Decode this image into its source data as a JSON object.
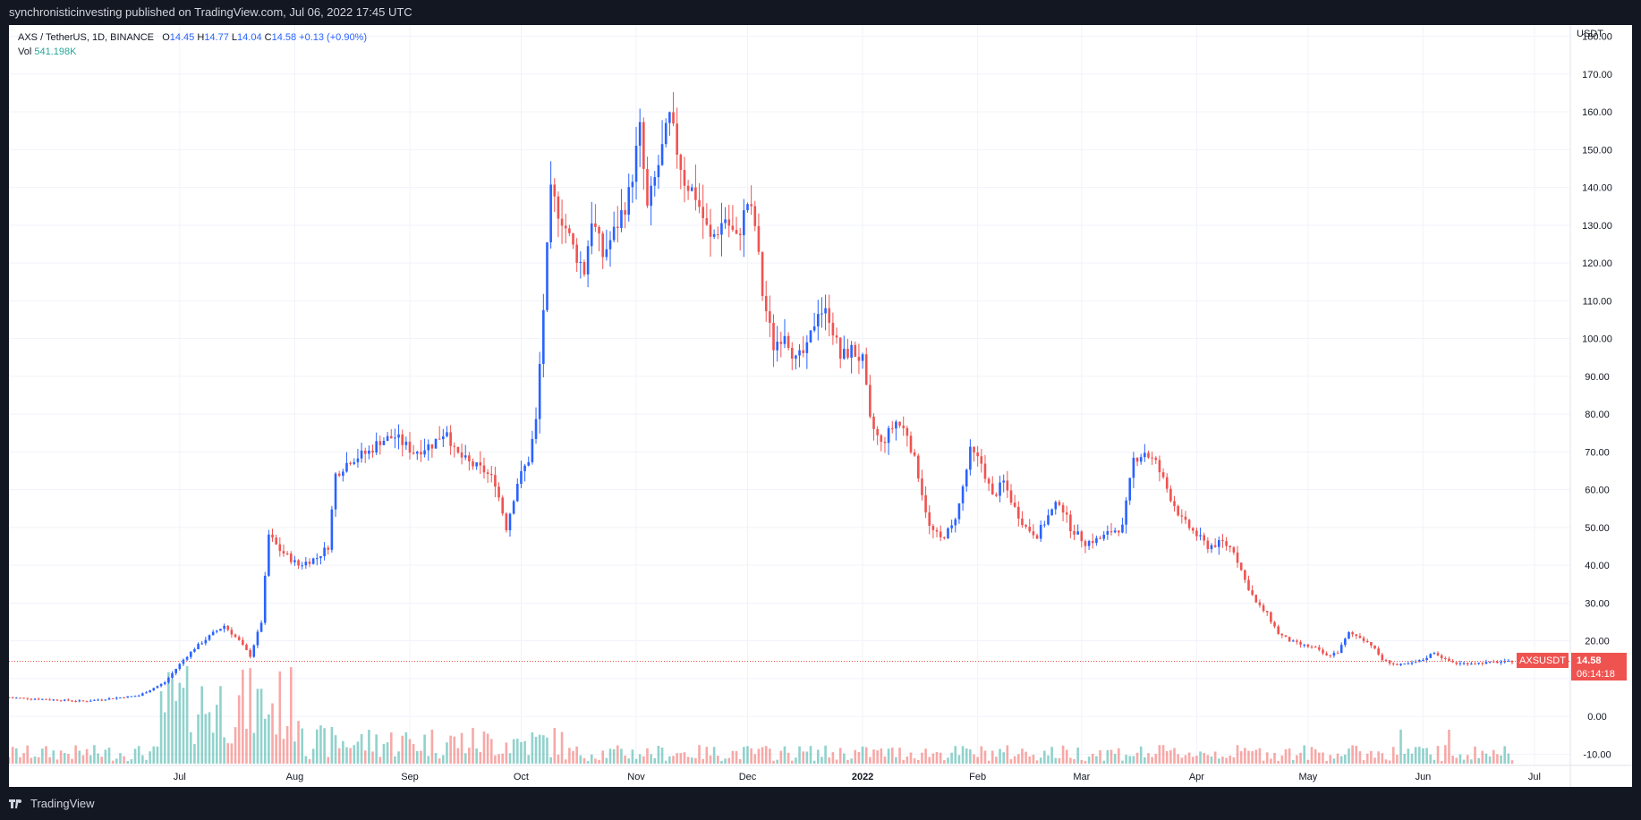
{
  "header": {
    "publisher": "synchronisticinvesting published on TradingView.com, Jul 06, 2022 17:45 UTC"
  },
  "footer": {
    "brand": "TradingView"
  },
  "legend": {
    "symbol": "AXS / TetherUS, 1D, BINANCE",
    "open_label": "O",
    "open": "14.45",
    "high_label": "H",
    "high": "14.77",
    "low_label": "L",
    "low": "14.04",
    "close_label": "C",
    "close": "14.58",
    "change": "+0.13 (+0.90%)",
    "vol_label": "Vol",
    "vol": "541.198K"
  },
  "price_tag": {
    "ticker": "AXSUSDT",
    "price": "14.58",
    "countdown": "06:14:18"
  },
  "colors": {
    "up": "#2962ff",
    "down": "#ef5350",
    "vol_up": "#26a69a",
    "vol_down": "#ef5350",
    "grid": "#f0f3fa"
  },
  "chart_data": {
    "type": "candlestick",
    "currency": "USDT",
    "ylim": [
      -13,
      183
    ],
    "y_ticks": [
      180,
      170,
      160,
      150,
      140,
      130,
      120,
      110,
      100,
      90,
      80,
      70,
      60,
      50,
      40,
      30,
      20,
      10,
      0,
      -10
    ],
    "y_tick_labels": [
      "180.00",
      "170.00",
      "160.00",
      "150.00",
      "140.00",
      "130.00",
      "120.00",
      "110.00",
      "100.00",
      "90.00",
      "80.00",
      "70.00",
      "60.00",
      "50.00",
      "40.00",
      "30.00",
      "20.00",
      "",
      "0.00",
      "-10.00"
    ],
    "x_labels": [
      "Jul",
      "Aug",
      "Sep",
      "Oct",
      "Nov",
      "Dec",
      "2022",
      "Feb",
      "Mar",
      "Apr",
      "May",
      "Jun",
      "Jul"
    ],
    "x_label_days": [
      46,
      77,
      108,
      138,
      169,
      199,
      230,
      261,
      289,
      320,
      350,
      381,
      411
    ],
    "total_days": 418,
    "last_price": 14.58,
    "close_series": [
      [
        0,
        5.0
      ],
      [
        20,
        4.0
      ],
      [
        35,
        5.5
      ],
      [
        42,
        9
      ],
      [
        47,
        15
      ],
      [
        50,
        18
      ],
      [
        55,
        22
      ],
      [
        58,
        24
      ],
      [
        62,
        20
      ],
      [
        65,
        16
      ],
      [
        68,
        25
      ],
      [
        70,
        48
      ],
      [
        73,
        44
      ],
      [
        78,
        40
      ],
      [
        83,
        42
      ],
      [
        86,
        45
      ],
      [
        88,
        64
      ],
      [
        92,
        68
      ],
      [
        97,
        70
      ],
      [
        100,
        73
      ],
      [
        104,
        74
      ],
      [
        109,
        70
      ],
      [
        114,
        72
      ],
      [
        118,
        76
      ],
      [
        120,
        70
      ],
      [
        124,
        67
      ],
      [
        128,
        65
      ],
      [
        131,
        62
      ],
      [
        134,
        50
      ],
      [
        137,
        62
      ],
      [
        140,
        68
      ],
      [
        142,
        78
      ],
      [
        144,
        108
      ],
      [
        146,
        138
      ],
      [
        149,
        132
      ],
      [
        152,
        124
      ],
      [
        155,
        118
      ],
      [
        157,
        132
      ],
      [
        160,
        122
      ],
      [
        163,
        128
      ],
      [
        167,
        138
      ],
      [
        170,
        155
      ],
      [
        172,
        134
      ],
      [
        175,
        146
      ],
      [
        178,
        158
      ],
      [
        182,
        142
      ],
      [
        185,
        138
      ],
      [
        189,
        126
      ],
      [
        193,
        132
      ],
      [
        196,
        126
      ],
      [
        199,
        136
      ],
      [
        201,
        130
      ],
      [
        203,
        112
      ],
      [
        206,
        98
      ],
      [
        209,
        102
      ],
      [
        212,
        94
      ],
      [
        215,
        97
      ],
      [
        218,
        108
      ],
      [
        221,
        106
      ],
      [
        224,
        95
      ],
      [
        227,
        97
      ],
      [
        230,
        94
      ],
      [
        232,
        78
      ],
      [
        235,
        72
      ],
      [
        239,
        78
      ],
      [
        242,
        75
      ],
      [
        245,
        64
      ],
      [
        248,
        50
      ],
      [
        251,
        47
      ],
      [
        254,
        50
      ],
      [
        256,
        56
      ],
      [
        259,
        70
      ],
      [
        262,
        67
      ],
      [
        265,
        58
      ],
      [
        268,
        62
      ],
      [
        271,
        55
      ],
      [
        274,
        50
      ],
      [
        277,
        48
      ],
      [
        280,
        53
      ],
      [
        283,
        57
      ],
      [
        286,
        50
      ],
      [
        290,
        46
      ],
      [
        294,
        47
      ],
      [
        297,
        49
      ],
      [
        300,
        50
      ],
      [
        303,
        68
      ],
      [
        306,
        70
      ],
      [
        309,
        67
      ],
      [
        313,
        58
      ],
      [
        316,
        52
      ],
      [
        320,
        48
      ],
      [
        323,
        45
      ],
      [
        327,
        46
      ],
      [
        330,
        44
      ],
      [
        333,
        36
      ],
      [
        336,
        30
      ],
      [
        339,
        27
      ],
      [
        342,
        22
      ],
      [
        345,
        20
      ],
      [
        348,
        19
      ],
      [
        352,
        18
      ],
      [
        355,
        16
      ],
      [
        358,
        17
      ],
      [
        361,
        22
      ],
      [
        364,
        21
      ],
      [
        367,
        19
      ],
      [
        370,
        15
      ],
      [
        374,
        13.5
      ],
      [
        378,
        14
      ],
      [
        381,
        15
      ],
      [
        384,
        17
      ],
      [
        387,
        15
      ],
      [
        390,
        14
      ],
      [
        396,
        14.1
      ],
      [
        400,
        14.3
      ],
      [
        404,
        14.45
      ],
      [
        405,
        14.58
      ]
    ]
  }
}
